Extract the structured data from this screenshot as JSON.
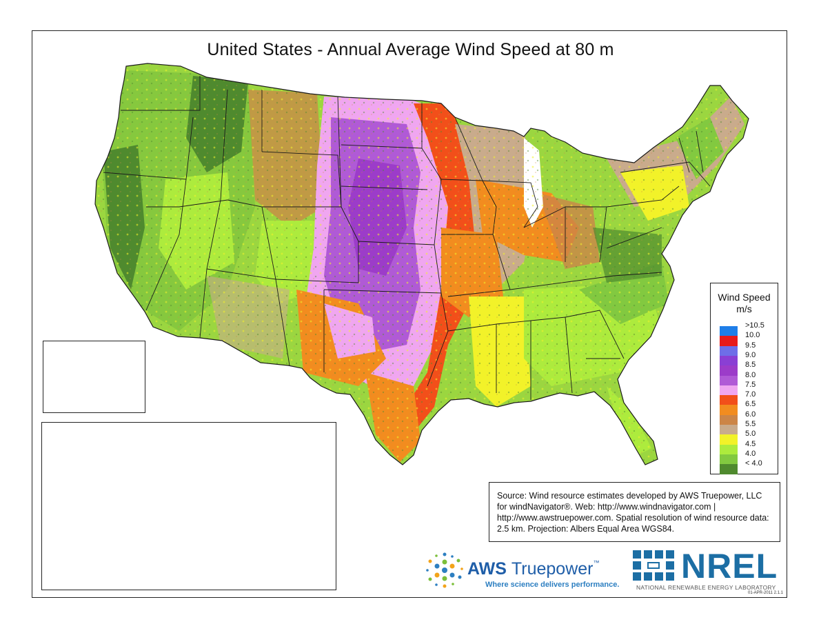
{
  "title": "United States - Annual Average Wind Speed at 80 m",
  "legend": {
    "title_line1": "Wind Speed",
    "title_line2": "m/s",
    "items": [
      {
        "label": ">10.5",
        "color": "#1f7ee8"
      },
      {
        "label": "10.0",
        "color": "#e81a1a"
      },
      {
        "label": "9.5",
        "color": "#6e6ee8"
      },
      {
        "label": "9.0",
        "color": "#8a3fd4"
      },
      {
        "label": "8.5",
        "color": "#9c3cc9"
      },
      {
        "label": "8.0",
        "color": "#b05ad6"
      },
      {
        "label": "7.5",
        "color": "#f0a6f0"
      },
      {
        "label": "7.0",
        "color": "#f24f1a"
      },
      {
        "label": "6.5",
        "color": "#f28c1f"
      },
      {
        "label": "6.0",
        "color": "#cc8547"
      },
      {
        "label": "5.5",
        "color": "#c9ab8c"
      },
      {
        "label": "5.0",
        "color": "#f2f229"
      },
      {
        "label": "4.5",
        "color": "#adeb3d"
      },
      {
        "label": "4.0",
        "color": "#82c940"
      },
      {
        "label": "< 4.0",
        "color": "#4f8a2e"
      }
    ]
  },
  "source_text": "Source: Wind resource estimates developed by AWS Truepower, LLC for windNavigator®. Web: http://www.windnavigator.com | http://www.awstruepower.com. Spatial resolution of wind resource data: 2.5 km. Projection: Albers Equal Area WGS84.",
  "logos": {
    "aws_name_bold": "AWS",
    "aws_name_light": "Truepower",
    "aws_tm": "™",
    "aws_tagline": "Where science delivers performance.",
    "nrel_name": "NREL",
    "nrel_subtitle": "NATIONAL RENEWABLE ENERGY LABORATORY"
  },
  "datestamp": "01-APR-2011 2.1.1",
  "colors": {
    "frame": "#222222",
    "state_border": "#1a1a1a"
  }
}
